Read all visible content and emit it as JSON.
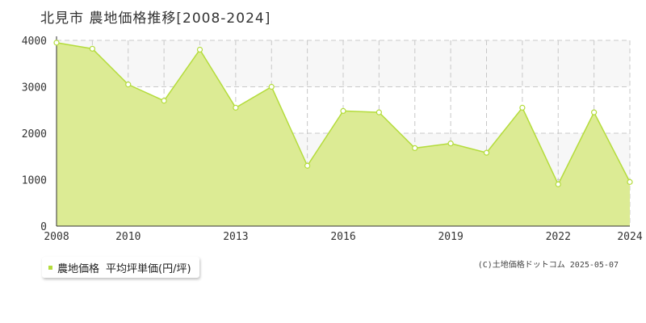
{
  "title": "北見市 農地価格推移[2008-2024]",
  "colors": {
    "fill": "#dceb94",
    "line": "#b4dc3c",
    "marker_fill": "#ffffff",
    "grid": "#c8c8c8",
    "band": "#f7f7f7"
  },
  "legend": {
    "series_label": "農地価格",
    "unit_label": "平均坪単価(円/坪)",
    "swatch_color": "#b4dc3c"
  },
  "credit": "(C)土地価格ドットコム 2025-05-07",
  "chart_data": {
    "type": "area",
    "title": "北見市 農地価格推移[2008-2024]",
    "xlabel": "",
    "ylabel": "",
    "xlim": [
      2008,
      2024
    ],
    "ylim": [
      0,
      4000
    ],
    "yticks": [
      0,
      1000,
      2000,
      3000,
      4000
    ],
    "xtick_labels": [
      "2008",
      "2010",
      "2013",
      "2016",
      "2019",
      "2022",
      "2024"
    ],
    "grid": true,
    "legend_position": "bottom-left",
    "series": [
      {
        "name": "農地価格",
        "x": [
          2008,
          2009,
          2010,
          2011,
          2012,
          2013,
          2014,
          2015,
          2016,
          2017,
          2018,
          2019,
          2020,
          2021,
          2022,
          2023,
          2024
        ],
        "values": [
          3950,
          3820,
          3050,
          2700,
          3800,
          2550,
          3000,
          1300,
          2480,
          2450,
          1680,
          1780,
          1580,
          2550,
          900,
          2450,
          950
        ]
      }
    ]
  }
}
